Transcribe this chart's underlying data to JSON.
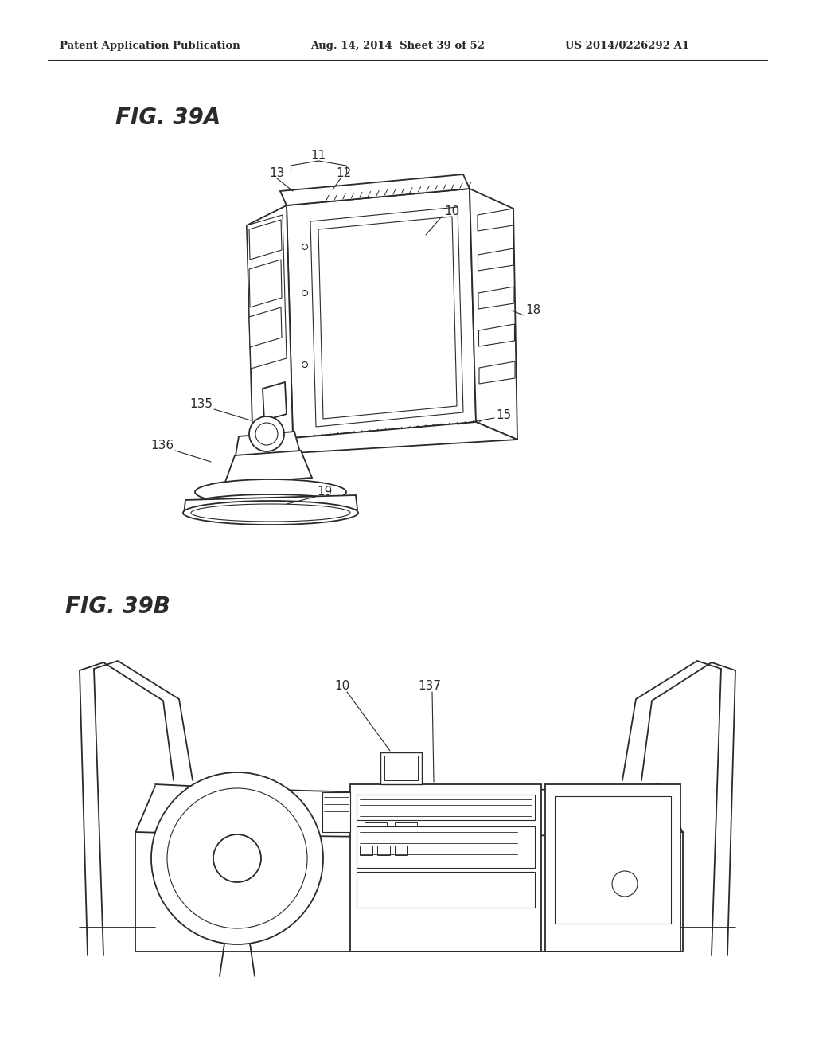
{
  "header_left": "Patent Application Publication",
  "header_mid": "Aug. 14, 2014  Sheet 39 of 52",
  "header_right": "US 2014/0226292 A1",
  "fig_a_title": "FIG. 39A",
  "fig_b_title": "FIG. 39B",
  "background_color": "#ffffff",
  "line_color": "#2a2a2a"
}
